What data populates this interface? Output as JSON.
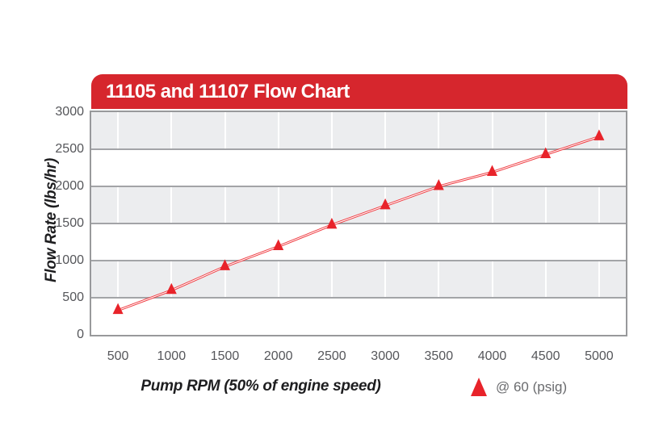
{
  "chart_data": {
    "type": "line",
    "title": "11105 and 11107 Flow Chart",
    "xlabel": "Pump RPM (50% of engine speed)",
    "ylabel": "Flow Rate (lbs/hr)",
    "x": [
      500,
      1000,
      1500,
      2000,
      2500,
      3000,
      3500,
      4000,
      4500,
      5000
    ],
    "series": [
      {
        "name": "@ 60 (psig)",
        "marker": "triangle-up",
        "values": [
          330,
          600,
          920,
          1190,
          1480,
          1740,
          2000,
          2190,
          2430,
          2670
        ]
      }
    ],
    "xticks": [
      "500",
      "1000",
      "1500",
      "2000",
      "2500",
      "3000",
      "3500",
      "4000",
      "4500",
      "5000"
    ],
    "yticks": [
      0,
      500,
      1000,
      1500,
      2000,
      2500,
      3000
    ],
    "ylim": [
      0,
      3000
    ],
    "grid": "horizontal gray lines, alternating white/gray bands, white vertical gridlines",
    "legend": {
      "label": "@ 60 (psig)",
      "marker": "triangle-up",
      "position": "bottom-right"
    }
  },
  "colors": {
    "banner_red": "#d6262d",
    "marker_red": "#e8232a",
    "line_red": "#ef3a40",
    "line_core_white": "#ffffff",
    "band_gray": "#ecedef",
    "grid_gray": "#a3a4a7",
    "plot_border_gray": "#98999b",
    "tick_text_gray": "#55565a",
    "axis_title_dark": "#1e1e20",
    "title_text": "#ffffff"
  }
}
